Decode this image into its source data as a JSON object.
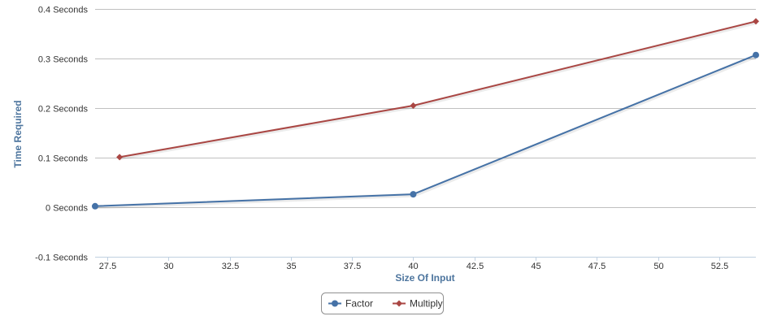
{
  "chart_data": {
    "type": "line",
    "title": "",
    "xlabel": "Size Of Input",
    "ylabel": "Time Required",
    "xlim": [
      27,
      54
    ],
    "ylim": [
      -0.1,
      0.4
    ],
    "x_ticks": [
      27.5,
      30,
      32.5,
      35,
      37.5,
      40,
      42.5,
      45,
      47.5,
      50,
      52.5
    ],
    "x_tick_labels": [
      "27.5",
      "30",
      "32.5",
      "35",
      "37.5",
      "40",
      "42.5",
      "45",
      "47.5",
      "50",
      "52.5"
    ],
    "y_ticks": [
      -0.1,
      0,
      0.1,
      0.2,
      0.3,
      0.4
    ],
    "y_tick_labels": [
      "-0.1 Seconds",
      "0 Seconds",
      "0.1 Seconds",
      "0.2 Seconds",
      "0.3 Seconds",
      "0.4 Seconds"
    ],
    "grid": "horizontal",
    "legend": "bottom-center",
    "series": [
      {
        "name": "Factor",
        "color": "#4572a7",
        "marker": "circle",
        "points": [
          [
            27,
            0.002
          ],
          [
            40,
            0.026
          ],
          [
            54,
            0.307
          ]
        ]
      },
      {
        "name": "Multiply",
        "color": "#aa4643",
        "marker": "diamond",
        "points": [
          [
            28,
            0.101
          ],
          [
            40,
            0.205
          ],
          [
            54,
            0.375
          ]
        ]
      }
    ]
  }
}
